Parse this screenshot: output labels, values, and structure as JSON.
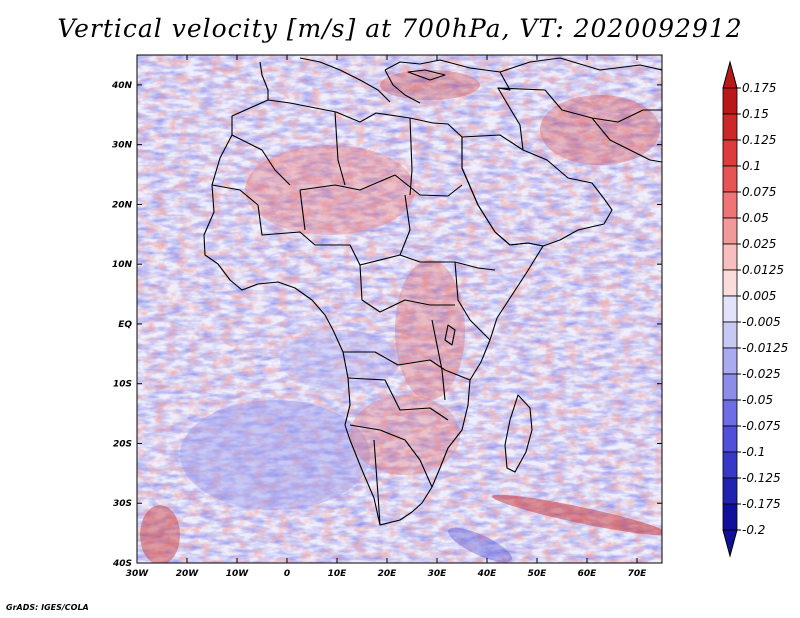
{
  "title": "Vertical velocity [m/s] at 700hPa, VT: 2020092912",
  "footer": "GrADS: IGES/COLA",
  "map": {
    "region": "Africa and Arabian Peninsula",
    "variable": "Vertical velocity",
    "units": "m/s",
    "level": "700hPa",
    "valid_time": "2020092912",
    "lon_range": [
      -30,
      75
    ],
    "lat_range": [
      -40,
      45
    ],
    "lat_ticks": [
      {
        "value": 40,
        "label": "40N"
      },
      {
        "value": 30,
        "label": "30N"
      },
      {
        "value": 20,
        "label": "20N"
      },
      {
        "value": 10,
        "label": "10N"
      },
      {
        "value": 0,
        "label": "EQ"
      },
      {
        "value": -10,
        "label": "10S"
      },
      {
        "value": -20,
        "label": "20S"
      },
      {
        "value": -30,
        "label": "30S"
      },
      {
        "value": -40,
        "label": "40S"
      }
    ],
    "lon_ticks": [
      {
        "value": -30,
        "label": "30W"
      },
      {
        "value": -20,
        "label": "20W"
      },
      {
        "value": -10,
        "label": "10W"
      },
      {
        "value": 0,
        "label": "0"
      },
      {
        "value": 10,
        "label": "10E"
      },
      {
        "value": 20,
        "label": "20E"
      },
      {
        "value": 30,
        "label": "30E"
      },
      {
        "value": 40,
        "label": "40E"
      },
      {
        "value": 50,
        "label": "50E"
      },
      {
        "value": 60,
        "label": "60E"
      },
      {
        "value": 70,
        "label": "70E"
      }
    ]
  },
  "colorbar": {
    "labels": [
      "0.175",
      "0.15",
      "0.125",
      "0.1",
      "0.075",
      "0.05",
      "0.025",
      "0.0125",
      "0.005",
      "-0.005",
      "-0.0125",
      "-0.025",
      "-0.05",
      "-0.075",
      "-0.1",
      "-0.125",
      "-0.175",
      "-0.2"
    ],
    "colors": [
      "#b81818",
      "#cc2828",
      "#dd3c3c",
      "#e65555",
      "#ee7575",
      "#f29a9a",
      "#f6bebe",
      "#fadcdc",
      "#ffffff",
      "#e2e2fa",
      "#c8c8f5",
      "#aaaaf0",
      "#8c8ceb",
      "#6e6ee4",
      "#5050d8",
      "#3838c8",
      "#2222b0",
      "#10109a"
    ]
  }
}
